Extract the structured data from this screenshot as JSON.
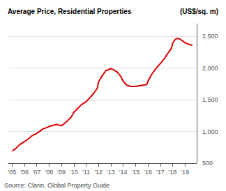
{
  "chart_data": {
    "type": "line",
    "title": "Average Price, Residential Properties",
    "ylabel": "(US$/sq. m)",
    "annotations": [
      "Source: Clarin, Global Property Guide"
    ],
    "color": "#dd0000",
    "grid": true,
    "x": [
      2005.0,
      2005.3,
      2005.6,
      2006.0,
      2006.3,
      2006.6,
      2007.0,
      2007.3,
      2007.5,
      2007.8,
      2008.0,
      2008.3,
      2008.6,
      2009.0,
      2009.2,
      2009.5,
      2009.8,
      2010.0,
      2010.3,
      2010.6,
      2011.0,
      2011.3,
      2011.6,
      2011.9,
      2012.0,
      2012.3,
      2012.6,
      2013.0,
      2013.2,
      2013.5,
      2013.8,
      2014.0,
      2014.3,
      2014.6,
      2015.0,
      2015.3,
      2015.6,
      2015.9,
      2016.0,
      2016.3,
      2016.6,
      2017.0,
      2017.3,
      2017.6,
      2017.9,
      2018.0,
      2018.2,
      2018.4,
      2018.6,
      2018.8,
      2019.0,
      2019.3,
      2019.6
    ],
    "values": [
      690,
      730,
      790,
      840,
      880,
      930,
      970,
      1010,
      1040,
      1060,
      1080,
      1095,
      1110,
      1090,
      1120,
      1170,
      1230,
      1300,
      1360,
      1420,
      1470,
      1530,
      1600,
      1680,
      1780,
      1880,
      1960,
      1990,
      1975,
      1940,
      1870,
      1790,
      1730,
      1710,
      1710,
      1720,
      1730,
      1740,
      1790,
      1900,
      1980,
      2070,
      2140,
      2230,
      2310,
      2390,
      2450,
      2470,
      2455,
      2430,
      2400,
      2375,
      2360
    ],
    "xlim": [
      2004.7,
      2019.95
    ],
    "xticks": [
      {
        "value": 2005,
        "label": "'05"
      },
      {
        "value": 2006,
        "label": "'06"
      },
      {
        "value": 2007,
        "label": "'07"
      },
      {
        "value": 2008,
        "label": "'08"
      },
      {
        "value": 2009,
        "label": "'09"
      },
      {
        "value": 2010,
        "label": "'10"
      },
      {
        "value": 2011,
        "label": "'11"
      },
      {
        "value": 2012,
        "label": "'12"
      },
      {
        "value": 2013,
        "label": "'13"
      },
      {
        "value": 2014,
        "label": "'14"
      },
      {
        "value": 2015,
        "label": "'15"
      },
      {
        "value": 2016,
        "label": "'16"
      },
      {
        "value": 2017,
        "label": "'17"
      },
      {
        "value": 2018,
        "label": "'18"
      },
      {
        "value": 2019,
        "label": "'19"
      }
    ],
    "ylim": [
      500,
      2700
    ],
    "yticks": [
      500,
      {
        "value": 1000,
        "label": "1,000"
      },
      {
        "value": 1500,
        "label": "1,500"
      },
      {
        "value": 2000,
        "label": "2,000"
      },
      {
        "value": 2500,
        "label": "2,500"
      }
    ]
  }
}
